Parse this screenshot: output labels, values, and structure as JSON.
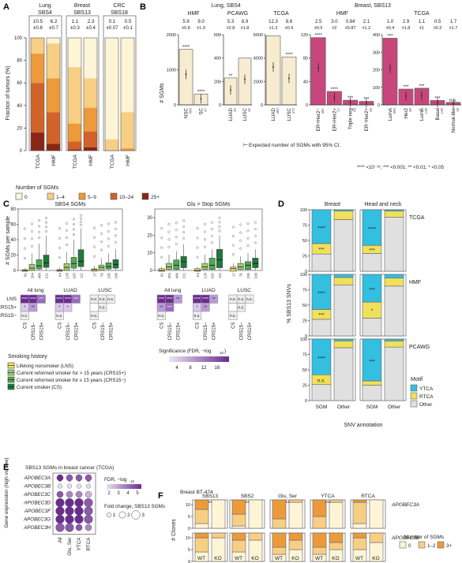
{
  "colors": {
    "nsgm0": "#fdf5d6",
    "nsgm1": "#f7cf84",
    "nsgm2": "#ec9a3a",
    "nsgm3": "#d1632a",
    "nsgm4": "#8b2515",
    "magenta": "#c7477c",
    "cream": "#f7ecd0",
    "ytca": "#33bfe0",
    "rtca": "#f0e05a",
    "other": "#e0e0e0",
    "lns": "#f0e16a",
    "crs15p": "#9ccf6b",
    "crs15m": "#4daa4c",
    "cs": "#1c7a3a",
    "sig_low": "#ede5f3",
    "sig_high": "#6b2c91"
  },
  "panelA": {
    "letter": "A",
    "ylabel": "Fraction of tumors (%)",
    "groups": [
      {
        "name": "Lung",
        "sub": "SBS4",
        "cols": [
          {
            "label": "TCGA",
            "mean": "10.5",
            "sd": "±0.8",
            "fr": [
              0.0,
              0.14,
              0.26,
              0.44,
              0.16
            ]
          },
          {
            "label": "HMF",
            "mean": "6.2",
            "sd": "±0.7",
            "fr": [
              0.05,
              0.31,
              0.3,
              0.28,
              0.06
            ]
          }
        ]
      },
      {
        "name": "Breast",
        "sub": "SBS13",
        "cols": [
          {
            "label": "TCGA",
            "mean": "1.1",
            "sd": "±0.3",
            "fr": [
              0.26,
              0.5,
              0.16,
              0.07,
              0.01
            ]
          },
          {
            "label": "HMF",
            "mean": "2.3",
            "sd": "±0.4",
            "fr": [
              0.36,
              0.26,
              0.21,
              0.14,
              0.03
            ]
          }
        ]
      },
      {
        "name": "CRC",
        "sub": "SBS18",
        "cols": [
          {
            "label": "TCGA",
            "mean": "0.1",
            "sd": "±0.07",
            "fr": [
              0.9,
              0.1,
              0,
              0,
              0
            ]
          },
          {
            "label": "HMF",
            "mean": "0.5",
            "sd": "±0.1",
            "fr": [
              0.66,
              0.32,
              0.02,
              0,
              0
            ]
          }
        ]
      }
    ],
    "ticks": [
      "0",
      "20",
      "40",
      "60",
      "80",
      "100"
    ],
    "legend_title": "Number of SGMs",
    "legend_items": [
      "0",
      "1–4",
      "5–9",
      "10–24",
      "25+"
    ]
  },
  "panelB": {
    "letter": "B",
    "ylabel": "# SGMs",
    "headers": {
      "lung_sbs4": "Lung, SBS4",
      "breast_sbs13": "Breast, SBS13"
    },
    "groups": [
      {
        "name": "HMF",
        "color": "cream",
        "max": 2000,
        "ticks": [
          "0",
          "1000",
          "2000"
        ],
        "bars": [
          {
            "label": "NSC",
            "n": "366",
            "mean": "5.9",
            "sd": "±0.8",
            "val": 1580,
            "sig": "****"
          },
          {
            "label": "SC",
            "n": "47",
            "mean": "9.0",
            "sd": "±1.9",
            "val": 310,
            "sig": "****"
          }
        ]
      },
      {
        "name": "PCAWG",
        "color": "cream",
        "max": 600,
        "ticks": [
          "0",
          "200",
          "400",
          "600"
        ],
        "bars": [
          {
            "label": "LUAD",
            "n": "32",
            "mean": "5.3",
            "sd": "±2.8",
            "val": 230,
            "sig": "**"
          },
          {
            "label": "LUSC",
            "n": "45",
            "mean": "8.9",
            "sd": "±1.8",
            "val": 400,
            "sig": ""
          }
        ]
      },
      {
        "name": "TCGA",
        "color": "cream",
        "max": 6000,
        "ticks": [
          "0",
          "2000",
          "4000",
          "6000"
        ],
        "bars": [
          {
            "label": "LUAD",
            "n": "482",
            "mean": "12.3",
            "sd": "±1.3",
            "val": 5900,
            "sig": ""
          },
          {
            "label": "LUSC",
            "n": "472",
            "mean": "8.6",
            "sd": "±0.9",
            "val": 4100,
            "sig": "****"
          }
        ]
      },
      {
        "name": "HMF",
        "color": "magenta",
        "max": 120,
        "ticks": [
          "0",
          "40",
          "80",
          "120"
        ],
        "bars": [
          {
            "label": "ER+Her2−",
            "n": "481",
            "mean": "2.5",
            "sd": "±0.5",
            "val": 115,
            "sig": "****"
          },
          {
            "label": "ER+Her2+",
            "n": "77",
            "mean": "3.0",
            "sd": "±2",
            "val": 23,
            "sig": "****"
          },
          {
            "label": "Triple neg",
            "n": "98",
            "mean": "0.84",
            "sd": "±0.87",
            "val": 8,
            "sig": "***"
          },
          {
            "label": "ER−Her2+",
            "n": "35",
            "mean": "2.1",
            "sd": "±1.2",
            "val": 6,
            "sig": "***"
          }
        ]
      },
      {
        "name": "TCGA",
        "color": "magenta",
        "max": 400,
        "ticks": [
          "0",
          "100",
          "200",
          "300",
          "400"
        ],
        "bars": [
          {
            "label": "LumA",
            "n": "390",
            "mean": "1.0",
            "sd": "±0.4",
            "val": 380,
            "sig": "***"
          },
          {
            "label": "Her2",
            "n": "30",
            "mean": "2.9",
            "sd": "±1.8",
            "val": 90,
            "sig": "***"
          },
          {
            "label": "LumB",
            "n": "138",
            "mean": "1.1",
            "sd": "±1",
            "val": 95,
            "sig": "***"
          },
          {
            "label": "Basal",
            "n": "138",
            "mean": "0.5",
            "sd": "±0.2",
            "val": 25,
            "sig": "***"
          },
          {
            "label": "Normal-like",
            "n": "18",
            "mean": "1.7",
            "sd": "±1.7",
            "val": 14,
            "sig": "n.s."
          }
        ]
      }
    ],
    "ci_note": "Expected number of SGMs with 95% CI.",
    "sig_note": "**** <10⁻¹⁶;  *** <0.001;  ** <0.01;  * <0.05"
  },
  "panelC": {
    "letter": "C",
    "ylabel": "# SGMs per sample",
    "left": {
      "title": "SBS4 SGMs",
      "max": 80,
      "ticks": [
        "0",
        "20",
        "40",
        "60",
        "80"
      ],
      "groups": [
        {
          "name": "All lung",
          "n": [
            "81",
            "204",
            "400",
            "211"
          ],
          "med": [
            0,
            3,
            6,
            10
          ],
          "q1": [
            0,
            1,
            3,
            5
          ],
          "q3": [
            1,
            8,
            14,
            20
          ],
          "w": [
            3,
            22,
            35,
            45
          ]
        },
        {
          "name": "LUAD",
          "n": [
            "64",
            "128",
            "165",
            "111"
          ],
          "med": [
            0,
            4,
            9,
            12
          ],
          "q1": [
            0,
            1,
            4,
            6
          ],
          "q3": [
            1,
            9,
            17,
            27
          ],
          "w": [
            4,
            24,
            40,
            55
          ]
        },
        {
          "name": "LUSC",
          "n": [
            "17",
            "76",
            "235",
            "100"
          ],
          "med": [
            1,
            4,
            5,
            8
          ],
          "q1": [
            0,
            1,
            3,
            4
          ],
          "q3": [
            2,
            7,
            10,
            14
          ],
          "w": [
            6,
            16,
            22,
            28
          ]
        }
      ]
    },
    "right": {
      "title": "Glu > Stop SGMs",
      "max": 35,
      "ticks": [
        "0",
        "10",
        "20",
        "30"
      ],
      "groups": [
        {
          "name": "All lung",
          "n": [
            "81",
            "204",
            "400",
            "211"
          ],
          "med": [
            0,
            2,
            3,
            5
          ],
          "q1": [
            0,
            1,
            1,
            2
          ],
          "q3": [
            1,
            4,
            6,
            8
          ],
          "w": [
            2,
            9,
            11,
            15
          ]
        },
        {
          "name": "LUAD",
          "n": [
            "64",
            "128",
            "165",
            "111"
          ],
          "med": [
            0,
            2,
            3,
            6
          ],
          "q1": [
            0,
            1,
            1,
            2
          ],
          "q3": [
            1,
            4,
            7,
            12
          ],
          "w": [
            2,
            9,
            12,
            20
          ]
        },
        {
          "name": "LUSC",
          "n": [
            "17",
            "76",
            "235",
            "100"
          ],
          "med": [
            1,
            2,
            3,
            4
          ],
          "q1": [
            0,
            1,
            1,
            2
          ],
          "q3": [
            2,
            4,
            5,
            7
          ],
          "w": [
            4,
            8,
            10,
            12
          ]
        }
      ]
    },
    "heat_rows": [
      "LNS",
      "CRS15+",
      "CRS15−"
    ],
    "heat_cols": [
      "CS",
      "CRS15−",
      "CRS15+"
    ],
    "heat_left": [
      [
        [
          "****",
          "****",
          "***"
        ],
        [
          "*",
          "**",
          "n.s."
        ],
        [
          "n.s.",
          "",
          ""
        ]
      ],
      [
        [
          "****",
          "****",
          "***"
        ],
        [
          "*",
          "*",
          "n.s."
        ],
        [
          "n.s.",
          "",
          ""
        ]
      ],
      [
        [
          "n.s.",
          "n.s.",
          "n.s."
        ],
        [
          "",
          "n.s.",
          "n.s."
        ],
        [
          "n.s.",
          "",
          ""
        ]
      ]
    ],
    "heat_right": [
      [
        [
          "****",
          "****",
          "**"
        ],
        [
          "**",
          "***",
          "n.s."
        ],
        [
          "n.s.",
          "",
          ""
        ]
      ],
      [
        [
          "****",
          "****",
          "**"
        ],
        [
          "*",
          "**",
          "n.s."
        ],
        [
          "n.s.",
          "",
          ""
        ]
      ],
      [
        [
          "n.s.",
          "n.s.",
          "n.s."
        ],
        [
          "",
          "n.s.",
          "n.s."
        ],
        [
          "n.s.",
          "",
          ""
        ]
      ]
    ],
    "smoking_title": "Smoking history",
    "smoking_items": [
      "Lifelong nonsmoker (LNS)",
      "Current reformed smoker for > 15 years (CRS15+)",
      "Current reformed smoker for ≤ 15 years (CRS15−)",
      "Current smoker (CS)"
    ],
    "sig_title": "Significance (FDR, −log",
    "sig_title_sub": "10",
    "sig_title_end": ")",
    "sig_ticks": [
      "4",
      "8",
      "12",
      "16"
    ]
  },
  "panelD": {
    "letter": "D",
    "ylabel": "% SBS13 SNVs",
    "xlabel": "SNV annotation",
    "col_titles": [
      "Breast",
      "Head and neck"
    ],
    "row_titles": [
      "TCGA",
      "HMF",
      "PCAWG"
    ],
    "x_labels": [
      "SGM",
      "Other"
    ],
    "ticks": [
      "0",
      "25",
      "50",
      "75",
      "100"
    ],
    "cells": [
      [
        {
          "sgm": [
            0.55,
            0.17,
            0.28
          ],
          "oth": [
            0.02,
            0.14,
            0.84
          ],
          "s1": "****",
          "s2": "***"
        },
        {
          "sgm": [
            0.58,
            0.13,
            0.29
          ],
          "oth": [
            0.02,
            0.1,
            0.88
          ],
          "s1": "****",
          "s2": "***"
        }
      ],
      [
        {
          "sgm": [
            0.57,
            0.16,
            0.27
          ],
          "oth": [
            0.05,
            0.12,
            0.83
          ],
          "s1": "****",
          "s2": "***"
        },
        {
          "sgm": [
            0.45,
            0.26,
            0.29
          ],
          "oth": [
            0.06,
            0.13,
            0.81
          ],
          "s1": "***",
          "s2": "*"
        }
      ],
      [
        {
          "sgm": [
            0.58,
            0.16,
            0.26
          ],
          "oth": [
            0.03,
            0.11,
            0.86
          ],
          "s1": "****",
          "s2": "n.s."
        },
        {
          "sgm": [
            0.68,
            0.07,
            0.25
          ],
          "oth": [
            0.03,
            0.1,
            0.87
          ],
          "s1": "***",
          "s2": ""
        }
      ]
    ],
    "legend_title": "Motif",
    "legend_items": [
      "YTCA",
      "RTCA",
      "Other"
    ]
  },
  "panelE": {
    "letter": "E",
    "title": "SBS13 SGMs in breast cancer (TCGA)",
    "ylabel": "Gene expression (high vs. low)",
    "genes": [
      "APOBEC3A",
      "APOBEC3B",
      "APOBEC3C",
      "APOBEC3D",
      "APOBEC3F",
      "APOBEC3G",
      "APOBEC3H"
    ],
    "cols": [
      "All",
      "Glu, Ser",
      "YTCA",
      "RTCA"
    ],
    "fdr": [
      [
        5,
        4,
        4,
        4
      ],
      [
        1,
        1,
        1,
        1
      ],
      [
        4,
        3,
        3,
        2
      ],
      [
        5,
        5,
        5,
        4
      ],
      [
        5,
        5,
        5,
        4
      ],
      [
        5,
        5,
        5,
        4
      ],
      [
        4,
        4,
        4,
        3
      ]
    ],
    "fc": [
      [
        2,
        2,
        2,
        2
      ],
      [
        1,
        1,
        1,
        1
      ],
      [
        2,
        2,
        2,
        2
      ],
      [
        3,
        3,
        3,
        3
      ],
      [
        3,
        3,
        3,
        3
      ],
      [
        3,
        3,
        3,
        3
      ],
      [
        3,
        3,
        2,
        2
      ]
    ],
    "stars": [
      [
        "*",
        "*",
        "*",
        "**"
      ],
      [
        "",
        "",
        "",
        ""
      ],
      [
        "",
        "",
        "",
        ""
      ],
      [
        "",
        "",
        "",
        ""
      ],
      [
        "",
        "",
        "",
        ""
      ],
      [
        "",
        "",
        "",
        ""
      ],
      [
        "",
        "",
        "",
        ""
      ]
    ],
    "fdr_title": "FDR, −log",
    "fdr_title_sub": "10",
    "fdr_ticks": [
      "2",
      "3",
      "4",
      "5"
    ],
    "fc_title": "Fold change, SBS13 SGMs",
    "fc_ticks": [
      "1",
      "2",
      "3"
    ]
  },
  "panelF": {
    "letter": "F",
    "title": "Breast BT-474",
    "ylabel": "# Clones",
    "row_labels": [
      "APOBEC3A",
      "APOBEC3B"
    ],
    "col_titles": [
      "SBS13",
      "SBS2",
      "Glu, Ser",
      "YTCA",
      "RTCA"
    ],
    "x_labels": [
      "WT",
      "KO"
    ],
    "ticks": [
      "0",
      "5",
      "10"
    ],
    "rows": [
      [
        {
          "wt": [
            2,
            6,
            4
          ],
          "ko": [
            12,
            0,
            0
          ],
          "sig": "**"
        },
        {
          "wt": [
            1,
            5,
            6
          ],
          "ko": [
            12,
            0,
            0
          ],
          "sig": "**"
        },
        {
          "wt": [
            0,
            4,
            8
          ],
          "ko": [
            11,
            1,
            0
          ],
          "sig": "**"
        },
        {
          "wt": [
            0,
            5,
            7
          ],
          "ko": [
            11,
            1,
            0
          ],
          "sig": "***"
        },
        {
          "wt": [
            2,
            9,
            1
          ],
          "ko": [
            12,
            0,
            0
          ],
          "sig": "·"
        }
      ],
      [
        {
          "wt": [
            4,
            6,
            2
          ],
          "ko": [
            10,
            2,
            0
          ],
          "sig": ""
        },
        {
          "wt": [
            4,
            5,
            3
          ],
          "ko": [
            9,
            3,
            0
          ],
          "sig": "·"
        },
        {
          "wt": [
            3,
            3,
            6
          ],
          "ko": [
            5,
            4,
            3
          ],
          "sig": ""
        },
        {
          "wt": [
            3,
            3,
            6
          ],
          "ko": [
            5,
            3,
            4
          ],
          "sig": ""
        },
        {
          "wt": [
            5,
            5,
            2
          ],
          "ko": [
            8,
            4,
            0
          ],
          "sig": ""
        }
      ]
    ],
    "legend_title": "Number of SGMs",
    "legend_items": [
      "0",
      "1–2",
      "3+"
    ]
  }
}
